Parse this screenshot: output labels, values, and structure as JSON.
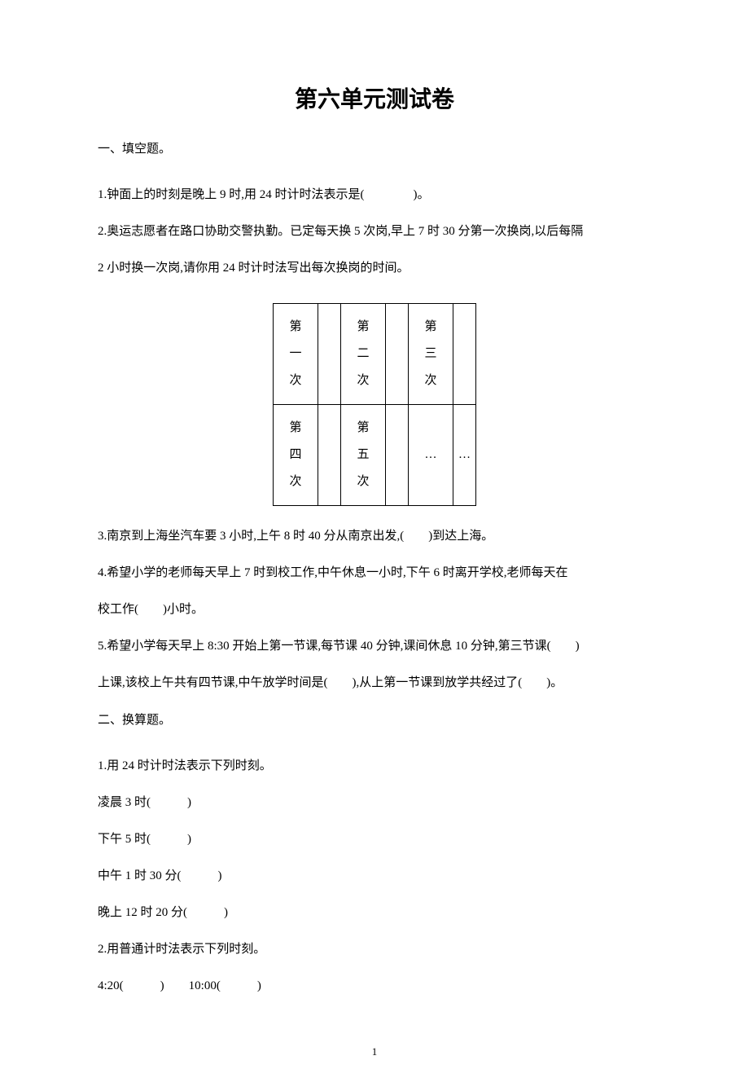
{
  "title": "第六单元测试卷",
  "section1": {
    "header": "一、填空题。",
    "q1": "1.钟面上的时刻是晚上 9 时,用 24 时计时法表示是(　　　　)。",
    "q2p1": "2.奥运志愿者在路口协助交警执勤。已定每天换 5 次岗,早上 7 时 30 分第一次换岗,以后每隔",
    "q2p2": "2 小时换一次岗,请你用 24 时计时法写出每次换岗的时间。",
    "table": {
      "r1c1": "第一次",
      "r1c2": "",
      "r1c3": "第二次",
      "r1c4": "",
      "r1c5": "第三次",
      "r1c6": "",
      "r2c1": "第四次",
      "r2c2": "",
      "r2c3": "第五次",
      "r2c4": "",
      "r2c5": "…",
      "r2c6": "…"
    },
    "q3": "3.南京到上海坐汽车要 3 小时,上午 8 时 40 分从南京出发,(　　)到达上海。",
    "q4p1": "4.希望小学的老师每天早上 7 时到校工作,中午休息一小时,下午 6 时离开学校,老师每天在",
    "q4p2": "校工作(　　)小时。",
    "q5p1": "5.希望小学每天早上 8:30 开始上第一节课,每节课 40 分钟,课间休息 10 分钟,第三节课(　　)",
    "q5p2": "上课,该校上午共有四节课,中午放学时间是(　　),从上第一节课到放学共经过了(　　)。"
  },
  "section2": {
    "header": "二、换算题。",
    "q1": "1.用 24 时计时法表示下列时刻。",
    "q1a": "凌晨 3 时(　　　)",
    "q1b": "下午 5 时(　　　)",
    "q1c": "中午 1 时 30 分(　　　)",
    "q1d": "晚上 12 时 20 分(　　　)",
    "q2": "2.用普通计时法表示下列时刻。",
    "q2a": "4:20(　　　)　　10:00(　　　)"
  },
  "pageNumber": "1"
}
